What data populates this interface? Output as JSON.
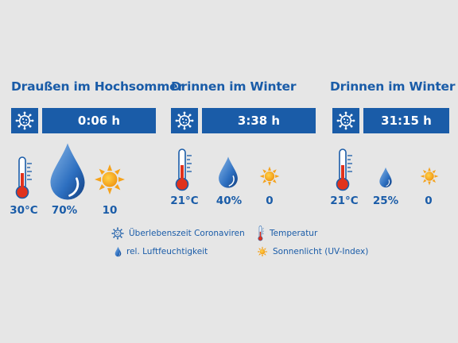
{
  "scenarios": [
    {
      "title": "Draußen im Hochsommer",
      "survival_time": "0:06 h",
      "temperature": "30°C",
      "humidity": "70%",
      "uv_index": "10"
    },
    {
      "title": "Drinnen im Winter",
      "survival_time": "3:38 h",
      "temperature": "21°C",
      "humidity": "40%",
      "uv_index": "0"
    },
    {
      "title": "Drinnen im Winter",
      "survival_time": "31:15 h",
      "temperature": "21°C",
      "humidity": "25%",
      "uv_index": "0"
    }
  ],
  "legend": {
    "virus": "Überlebenszeit Coronaviren",
    "temperature": "Temperatur",
    "humidity": "rel. Luftfeuchtigkeit",
    "sun": "Sonnenlicht (UV-Index)"
  },
  "icons": {
    "virus": "virus-icon",
    "thermometer": "thermometer-icon",
    "drop": "water-drop-icon",
    "sun": "sun-icon"
  },
  "colors": {
    "brand_blue": "#1a5ca8",
    "sun_orange": "#f5a21b",
    "thermo_red": "#e0321d",
    "background": "#e6e6e6"
  }
}
